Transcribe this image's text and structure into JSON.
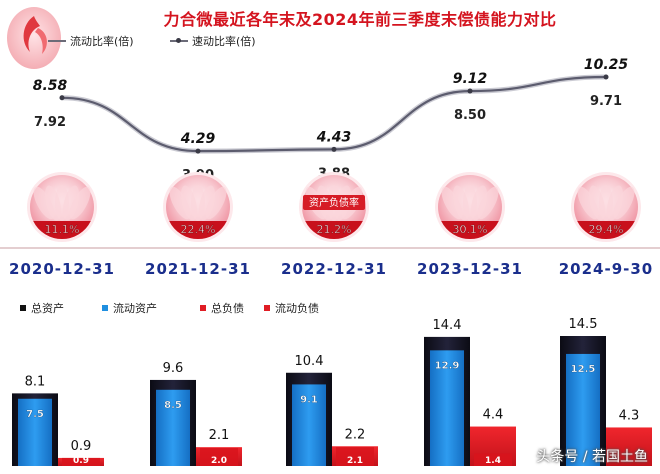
{
  "title": "力合微最近各年末及2024年前三季度末偿债能力对比",
  "legend_top": [
    {
      "label": "流动比率(倍)",
      "marker": "line"
    },
    {
      "label": "速动比率(倍)",
      "marker": "line-dot"
    }
  ],
  "legend_bottom": [
    {
      "label": "总资产",
      "color": "#111111"
    },
    {
      "label": "流动资产",
      "color": "#1f8fe0"
    },
    {
      "label": "总负债",
      "color": "#e01d24"
    },
    {
      "label": "流动负债",
      "color": "#e01d24"
    }
  ],
  "circle_extra_label": "资产负债率",
  "watermark": "头条号 / 若国土鱼",
  "colors": {
    "title": "#d4141f",
    "total_assets": "#111111",
    "current_assets": "#1f8fe0",
    "liabilities": "#e01d24",
    "date": "#1a2e8c"
  },
  "chart_data": [
    {
      "type": "line",
      "categories": [
        "2020-12-31",
        "2021-12-31",
        "2022-12-31",
        "2023-12-31",
        "2024-9-30"
      ],
      "series": [
        {
          "name": "流动比率(倍)",
          "values": [
            8.58,
            4.29,
            4.43,
            9.12,
            10.25
          ]
        },
        {
          "name": "速动比率(倍)",
          "values": [
            7.92,
            3.9,
            3.88,
            8.5,
            9.71
          ]
        }
      ],
      "data_labels": {
        "current": [
          "8.58",
          "4.29",
          "4.43",
          "9.12",
          "10.25"
        ],
        "quick": [
          "7.92",
          "3.90",
          "3.88",
          "8.50",
          "9.71"
        ]
      }
    },
    {
      "type": "pie",
      "title": "资产负债率",
      "categories": [
        "2020-12-31",
        "2021-12-31",
        "2022-12-31",
        "2023-12-31",
        "2024-9-30"
      ],
      "values": [
        11.1,
        22.4,
        21.2,
        30.1,
        29.4
      ],
      "labels": [
        "11.1%",
        "22.4%",
        "21.2%",
        "30.1%",
        "29.4%"
      ]
    },
    {
      "type": "bar",
      "categories": [
        "2020-12-31",
        "2021-12-31",
        "2022-12-31",
        "2023-12-31",
        "2024-9-30"
      ],
      "series": [
        {
          "name": "总资产",
          "values": [
            8.1,
            9.6,
            10.4,
            14.4,
            14.5
          ],
          "labels": [
            "8.1",
            "9.6",
            "10.4",
            "14.4",
            "14.5"
          ]
        },
        {
          "name": "流动资产",
          "values": [
            7.5,
            8.5,
            9.1,
            12.9,
            12.5
          ],
          "labels": [
            "7.5",
            "8.5",
            "9.1",
            "12.9",
            "12.5"
          ]
        },
        {
          "name": "总负债",
          "values": [
            0.9,
            2.1,
            2.2,
            4.4,
            4.3
          ],
          "labels": [
            "0.9",
            "2.1",
            "2.2",
            "4.4",
            "4.3"
          ]
        },
        {
          "name": "流动负债",
          "values": [
            0.9,
            2.0,
            2.1,
            1.4,
            null
          ],
          "labels": [
            "0.9",
            "2.0",
            "2.1",
            "1.4",
            ""
          ]
        }
      ]
    }
  ]
}
